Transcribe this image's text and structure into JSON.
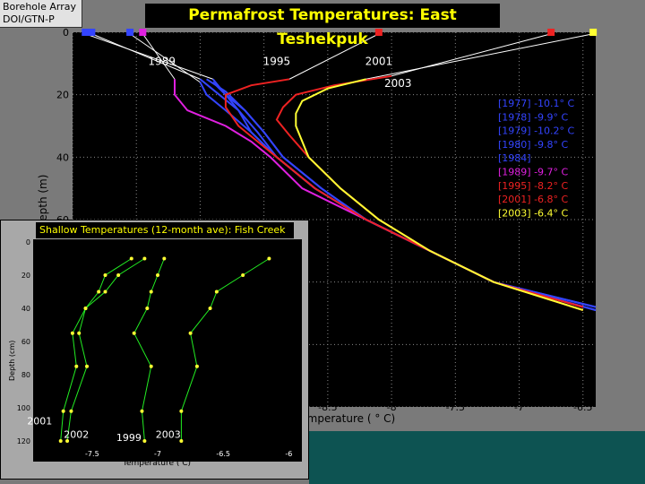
{
  "header": {
    "badge_line1": "Borehole Array",
    "badge_line2": "DOI/GTN-P",
    "title": "Permafrost Temperatures:  East Teshekpuk"
  },
  "chart_data": [
    {
      "type": "line",
      "title": "Permafrost Temperatures:  East Teshekpuk",
      "xlabel": "Temperature ( ° C)",
      "ylabel": "Depth (m)",
      "xlim": [
        -10.5,
        -6.4
      ],
      "ylim": [
        0,
        120
      ],
      "y_inverted": true,
      "grid": true,
      "x_ticks": [
        "-8.5",
        "-8",
        "-7.5",
        "-7",
        "-6.5"
      ],
      "y_ticks": [
        "0",
        "20",
        "40",
        "60"
      ],
      "legend_position": "right",
      "series": [
        {
          "name": "[1977]  -10.1° C",
          "color": "#3344ff",
          "x": [
            -9.4,
            -9.3,
            -9.2,
            -9.1,
            -8.9,
            -8.6,
            -8.2,
            -7.7,
            -7.2,
            -6.4
          ],
          "y": [
            15,
            20,
            25,
            32,
            40,
            50,
            60,
            70,
            80,
            88
          ]
        },
        {
          "name": "[1978]   -9.9° C",
          "color": "#3344ff",
          "x": [
            -9.5,
            -9.35,
            -9.2,
            -9.05,
            -8.9,
            -8.6,
            -8.2,
            -7.7,
            -7.2,
            -6.4
          ],
          "y": [
            15,
            20,
            25,
            32,
            40,
            50,
            60,
            70,
            80,
            89
          ]
        },
        {
          "name": "[1979]  -10.2° C",
          "color": "#3344ff",
          "x": [
            -9.5,
            -9.45,
            -9.3,
            -9.1,
            -8.9,
            -8.6,
            -8.2,
            -7.7,
            -7.2,
            -6.4
          ],
          "y": [
            16,
            20,
            25,
            32,
            40,
            50,
            60,
            70,
            80,
            88
          ]
        },
        {
          "name": "[1980]    -9.8° C",
          "color": "#3344ff",
          "x": [
            -9.45,
            -9.3,
            -9.15,
            -9.0,
            -8.85,
            -8.55,
            -8.2,
            -7.7,
            -7.2,
            -6.4
          ],
          "y": [
            15,
            19,
            25,
            32,
            40,
            50,
            60,
            70,
            80,
            89
          ]
        },
        {
          "name": "[1984]",
          "color": "#3344ff",
          "x": [
            -9.4,
            -9.3,
            -9.15,
            -9.0,
            -8.85,
            -8.55,
            -8.2,
            -7.7,
            -7.2,
            -6.4
          ],
          "y": [
            16,
            20,
            25,
            32,
            40,
            50,
            60,
            70,
            80,
            89
          ]
        },
        {
          "name": "[1989]    -9.7° C",
          "color": "#e020e0",
          "x": [
            -9.7,
            -9.7,
            -9.6,
            -9.3,
            -9.1,
            -8.95,
            -8.7,
            -8.2,
            -7.7,
            -7.2,
            -6.5
          ],
          "y": [
            15,
            20,
            25,
            30,
            35,
            40,
            50,
            60,
            70,
            80,
            88
          ]
        },
        {
          "name": "[1995]    -8.2° C",
          "color": "#ee2222",
          "x": [
            -8.8,
            -9.1,
            -9.3,
            -9.3,
            -9.2,
            -9.05,
            -8.9,
            -8.6,
            -8.2,
            -7.7,
            -7.2,
            -6.5
          ],
          "y": [
            15,
            17,
            20,
            24,
            30,
            35,
            40,
            50,
            60,
            70,
            80,
            88
          ]
        },
        {
          "name": "[2001]    -6.8° C",
          "color": "#ee2222",
          "x": [
            -8.0,
            -8.45,
            -8.75,
            -8.85,
            -8.9,
            -8.8,
            -8.65,
            -8.4,
            -8.1,
            -7.7,
            -7.2,
            -6.5
          ],
          "y": [
            14,
            17,
            20,
            24,
            28,
            33,
            40,
            50,
            60,
            70,
            80,
            89
          ]
        },
        {
          "name": "[2003]    -6.4° C",
          "color": "#ffff33",
          "x": [
            -8.2,
            -8.5,
            -8.7,
            -8.75,
            -8.75,
            -8.65,
            -8.4,
            -8.1,
            -7.7,
            -7.2,
            -6.5
          ],
          "y": [
            15,
            18,
            22,
            26,
            30,
            40,
            50,
            60,
            70,
            80,
            89
          ]
        }
      ],
      "surface_markers": [
        {
          "x": -10.4,
          "color": "#3344ff"
        },
        {
          "x": -10.35,
          "color": "#3344ff"
        },
        {
          "x": -10.05,
          "color": "#3344ff"
        },
        {
          "x": -9.95,
          "color": "#e020e0"
        },
        {
          "x": -8.1,
          "color": "#ee2222"
        },
        {
          "x": -6.75,
          "color": "#ee2222"
        },
        {
          "x": -6.42,
          "color": "#ffff33"
        }
      ],
      "year_labels": [
        {
          "text": "1989",
          "x": -9.8,
          "y": 10.5
        },
        {
          "text": "1995",
          "x": -8.9,
          "y": 10.5
        },
        {
          "text": "2001",
          "x": -8.1,
          "y": 10.5
        },
        {
          "text": "2003",
          "x": -7.95,
          "y": 17.5
        }
      ]
    },
    {
      "type": "line",
      "title": "Shallow Temperatures (12-month ave): Fish Creek",
      "xlabel": "Temperature ( C)",
      "ylabel": "Depth (cm)",
      "xlim": [
        -7.95,
        -5.9
      ],
      "ylim": [
        0,
        120
      ],
      "y_inverted": true,
      "x_ticks": [
        "-7.5",
        "-7",
        "-6.5",
        "-6"
      ],
      "y_ticks": [
        "0",
        "20",
        "40",
        "60",
        "80",
        "100",
        "120"
      ],
      "series": [
        {
          "name": "2001",
          "x": [
            -7.2,
            -7.4,
            -7.45,
            -7.55,
            -7.65,
            -7.62,
            -7.72,
            -7.74
          ],
          "y": [
            10,
            20,
            30,
            40,
            55,
            75,
            102,
            120
          ]
        },
        {
          "name": "2002",
          "x": [
            -7.1,
            -7.3,
            -7.4,
            -7.55,
            -7.6,
            -7.54,
            -7.66,
            -7.69
          ],
          "y": [
            10,
            20,
            30,
            40,
            55,
            75,
            102,
            120
          ]
        },
        {
          "name": "1999",
          "x": [
            -6.95,
            -7.0,
            -7.05,
            -7.08,
            -7.18,
            -7.05,
            -7.12,
            -7.1
          ],
          "y": [
            10,
            20,
            30,
            40,
            55,
            75,
            102,
            120
          ]
        },
        {
          "name": "2003",
          "x": [
            -6.15,
            -6.35,
            -6.55,
            -6.6,
            -6.75,
            -6.7,
            -6.82,
            -6.82
          ],
          "y": [
            10,
            20,
            30,
            40,
            55,
            75,
            102,
            120
          ]
        }
      ]
    }
  ],
  "inset_year_labels": [
    {
      "text": "2001",
      "x": -7.9,
      "y": 110
    },
    {
      "text": "2002",
      "x": -7.62,
      "y": 118
    },
    {
      "text": "1999",
      "x": -7.22,
      "y": 120
    },
    {
      "text": "2003",
      "x": -6.92,
      "y": 118
    }
  ],
  "inset_extra": {
    "x_tick_top_label": "-6",
    "x_mid_label": "-7",
    "x_mid_label2": "-6.5"
  }
}
